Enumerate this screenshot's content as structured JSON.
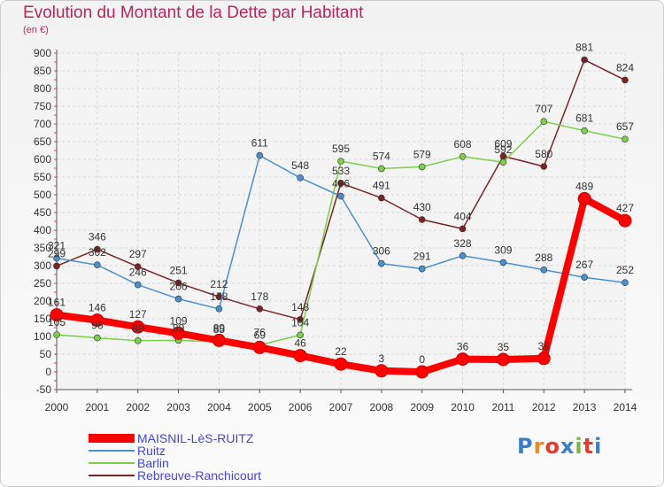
{
  "title": "Evolution du Montant de la Dette par Habitant",
  "unit": "(en €)",
  "logo": {
    "text": "Proxiti",
    "colors": [
      "#3a7ec9",
      "#f08a1c",
      "#e8382c",
      "#3a7ec9",
      "#7cb342",
      "#e8382c",
      "#3a7ec9"
    ]
  },
  "chart_data": {
    "type": "line",
    "x": [
      2000,
      2001,
      2002,
      2003,
      2004,
      2005,
      2006,
      2007,
      2008,
      2009,
      2010,
      2011,
      2012,
      2013,
      2014
    ],
    "ylim": [
      -50,
      900
    ],
    "yticks": [
      -50,
      0,
      50,
      100,
      150,
      200,
      250,
      300,
      350,
      400,
      450,
      500,
      550,
      600,
      650,
      700,
      750,
      800,
      850,
      900
    ],
    "grid": true,
    "legend": "bottom-left",
    "series": [
      {
        "name": "MAISNIL-LèS-RUITZ",
        "color": "#ff0000",
        "values": [
          161,
          146,
          127,
          109,
          89,
          69,
          46,
          22,
          3,
          0,
          36,
          35,
          38,
          489,
          427
        ]
      },
      {
        "name": "Ruitz",
        "color": "#4a90d0",
        "values": [
          321,
          302,
          246,
          206,
          178,
          611,
          548,
          496,
          306,
          291,
          328,
          309,
          288,
          267,
          252
        ]
      },
      {
        "name": "Barlin",
        "color": "#7dcf4a",
        "values": [
          105,
          96,
          88,
          89,
          85,
          76,
          104,
          595,
          574,
          579,
          608,
          592,
          707,
          681,
          657
        ]
      },
      {
        "name": "Rebreuve-Ranchicourt",
        "color": "#7a2424",
        "values": [
          299,
          346,
          297,
          251,
          212,
          178,
          148,
          533,
          491,
          430,
          404,
          609,
          580,
          881,
          824
        ]
      }
    ]
  }
}
